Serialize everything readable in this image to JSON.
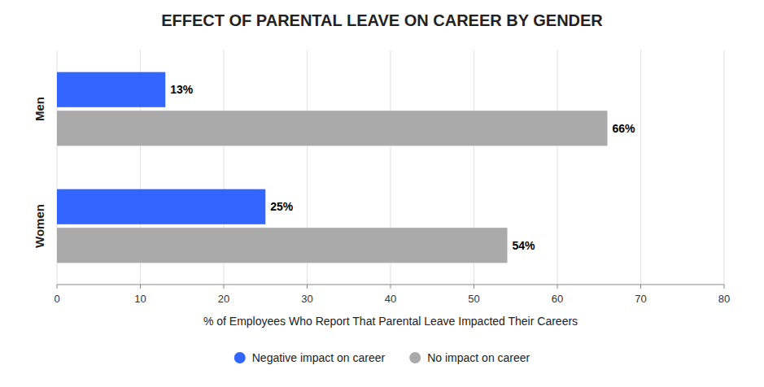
{
  "chart_data": {
    "type": "bar",
    "orientation": "horizontal",
    "title": "EFFECT OF PARENTAL LEAVE ON CAREER BY GENDER",
    "categories": [
      "Men",
      "Women"
    ],
    "series": [
      {
        "name": "Negative impact on career",
        "color": "#3366FF",
        "values": [
          13,
          25
        ],
        "value_labels": [
          "13%",
          "25%"
        ]
      },
      {
        "name": "No impact on career",
        "color": "#AAAAAA",
        "values": [
          66,
          54
        ],
        "value_labels": [
          "66%",
          "54%"
        ]
      }
    ],
    "xlabel": "% of Employees Who Report That Parental Leave Impacted Their Careers",
    "xlim": [
      0,
      80
    ],
    "xticks": [
      0,
      10,
      20,
      30,
      40,
      50,
      60,
      70,
      80
    ],
    "grid": true,
    "data_labels": true,
    "legend": "bottom"
  }
}
